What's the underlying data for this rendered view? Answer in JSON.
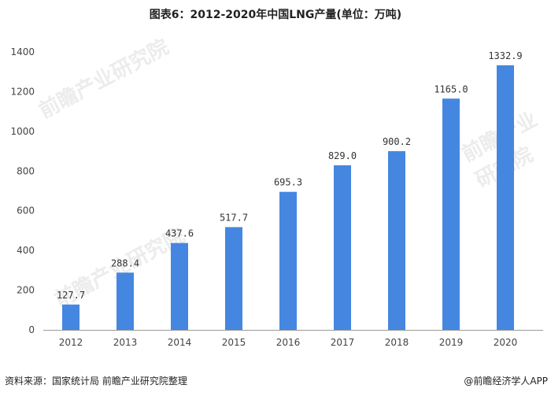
{
  "chart_data": {
    "type": "bar",
    "title": "图表6：2012-2020年中国LNG产量(单位：万吨)",
    "categories": [
      "2012",
      "2013",
      "2014",
      "2015",
      "2016",
      "2017",
      "2018",
      "2019",
      "2020"
    ],
    "values": [
      127.7,
      288.4,
      437.6,
      517.7,
      695.3,
      829.0,
      900.2,
      1165.0,
      1332.9
    ],
    "data_labels": [
      "127.7",
      "288.4",
      "437.6",
      "517.7",
      "695.3",
      "829.0",
      "900.2",
      "1165.0",
      "1332.9"
    ],
    "ylim": [
      0,
      1400
    ],
    "yticks": [
      0,
      200,
      400,
      600,
      800,
      1000,
      1200,
      1400
    ],
    "grid": false,
    "bar_color": "#4587E0",
    "xlabel": "",
    "ylabel": ""
  },
  "footer": {
    "source": "资料来源：国家统计局 前瞻产业研究院整理",
    "brand": "@前瞻经济学人APP"
  },
  "watermark": "前瞻产业研究院"
}
